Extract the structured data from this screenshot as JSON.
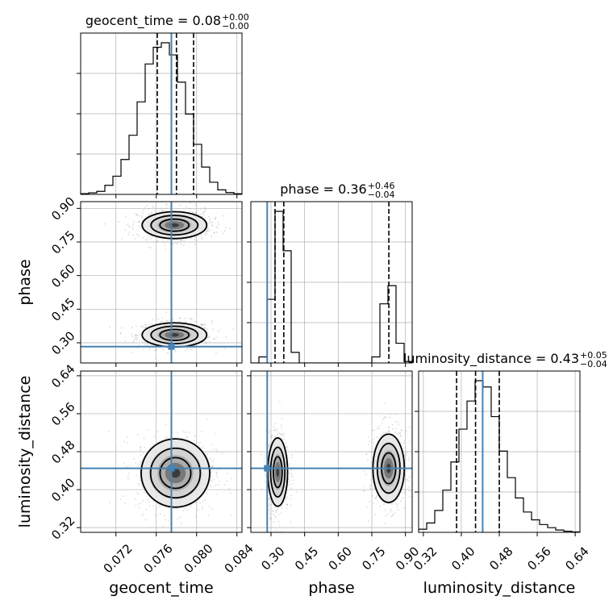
{
  "chart_data": {
    "type": "corner",
    "parameters": [
      "geocent_time",
      "phase",
      "luminosity_distance"
    ],
    "axis_labels": [
      "geocent_time",
      "phase",
      "luminosity_distance"
    ],
    "ranges": {
      "geocent_time": [
        0.0685,
        0.0845
      ],
      "phase": [
        0.21,
        0.93
      ],
      "luminosity_distance": [
        0.31,
        0.65
      ]
    },
    "ticks": {
      "geocent_time": [
        "0.072",
        "0.076",
        "0.080",
        "0.084"
      ],
      "phase": [
        "0.30",
        "0.45",
        "0.60",
        "0.75",
        "0.90"
      ],
      "luminosity_distance": [
        "0.32",
        "0.40",
        "0.48",
        "0.56",
        "0.64"
      ]
    },
    "titles": {
      "geocent_time": {
        "label": "geocent_time = 0.08",
        "plus": "+0.00",
        "minus": "−0.00"
      },
      "phase": {
        "label": "phase = 0.36",
        "plus": "+0.46",
        "minus": "−0.04"
      },
      "luminosity_distance": {
        "label": "luminosity_distance = 0.43",
        "plus": "+0.05",
        "minus": "−0.04"
      }
    },
    "truths": {
      "geocent_time": 0.0775,
      "phase": 0.283,
      "luminosity_distance": 0.445
    },
    "quantiles": {
      "geocent_time": [
        0.0761,
        0.078,
        0.0797
      ],
      "phase": [
        0.318,
        0.357,
        0.826
      ],
      "luminosity_distance": [
        0.39,
        0.43,
        0.48
      ]
    },
    "histograms": {
      "geocent_time": {
        "edges": [
          0.0685,
          0.0693,
          0.0701,
          0.0709,
          0.0717,
          0.0725,
          0.0733,
          0.0741,
          0.0749,
          0.0757,
          0.0765,
          0.0773,
          0.0781,
          0.0789,
          0.0797,
          0.0805,
          0.0813,
          0.0821,
          0.0829,
          0.0837,
          0.0845
        ],
        "counts": [
          0.005,
          0.01,
          0.02,
          0.06,
          0.12,
          0.23,
          0.39,
          0.61,
          0.86,
          0.97,
          1.0,
          0.92,
          0.74,
          0.53,
          0.33,
          0.18,
          0.08,
          0.03,
          0.012,
          0.004
        ]
      },
      "phase": {
        "edges": [
          0.21,
          0.246,
          0.282,
          0.318,
          0.354,
          0.39,
          0.426,
          0.462,
          0.498,
          0.534,
          0.57,
          0.606,
          0.642,
          0.678,
          0.714,
          0.75,
          0.786,
          0.822,
          0.858,
          0.894,
          0.93
        ],
        "counts": [
          0.0,
          0.04,
          0.42,
          1.0,
          0.74,
          0.07,
          0.0,
          0.0,
          0.0,
          0.0,
          0.0,
          0.0,
          0.0,
          0.0,
          0.0,
          0.04,
          0.39,
          0.51,
          0.13,
          0.01
        ]
      },
      "luminosity_distance": {
        "edges": [
          0.31,
          0.327,
          0.344,
          0.361,
          0.378,
          0.395,
          0.412,
          0.429,
          0.446,
          0.463,
          0.48,
          0.497,
          0.514,
          0.531,
          0.548,
          0.565,
          0.582,
          0.599,
          0.616,
          0.633,
          0.65
        ],
        "counts": [
          0.02,
          0.06,
          0.14,
          0.27,
          0.45,
          0.66,
          0.84,
          0.97,
          0.93,
          0.74,
          0.52,
          0.35,
          0.22,
          0.13,
          0.08,
          0.05,
          0.03,
          0.015,
          0.007,
          0.003
        ]
      }
    },
    "posterior_2d": {
      "phase_vs_geocent_time": {
        "blobs": [
          {
            "cx": 0.0778,
            "cy": 0.335,
            "sx": 0.0016,
            "sy": 0.027
          },
          {
            "cx": 0.0778,
            "cy": 0.825,
            "sx": 0.0016,
            "sy": 0.03
          }
        ]
      },
      "luminosity_distance_vs_geocent_time": {
        "blobs": [
          {
            "cx": 0.0779,
            "cy": 0.435,
            "sx": 0.0017,
            "sy": 0.036
          }
        ]
      },
      "luminosity_distance_vs_phase": {
        "blobs": [
          {
            "cx": 0.33,
            "cy": 0.437,
            "sx": 0.022,
            "sy": 0.036
          },
          {
            "cx": 0.825,
            "cy": 0.445,
            "sx": 0.035,
            "sy": 0.036
          }
        ]
      }
    },
    "colors": {
      "truth": "#4682b4",
      "line": "#000000",
      "grid": "#b0b0b0",
      "samples": "#9a9a9a"
    },
    "grid": true
  }
}
